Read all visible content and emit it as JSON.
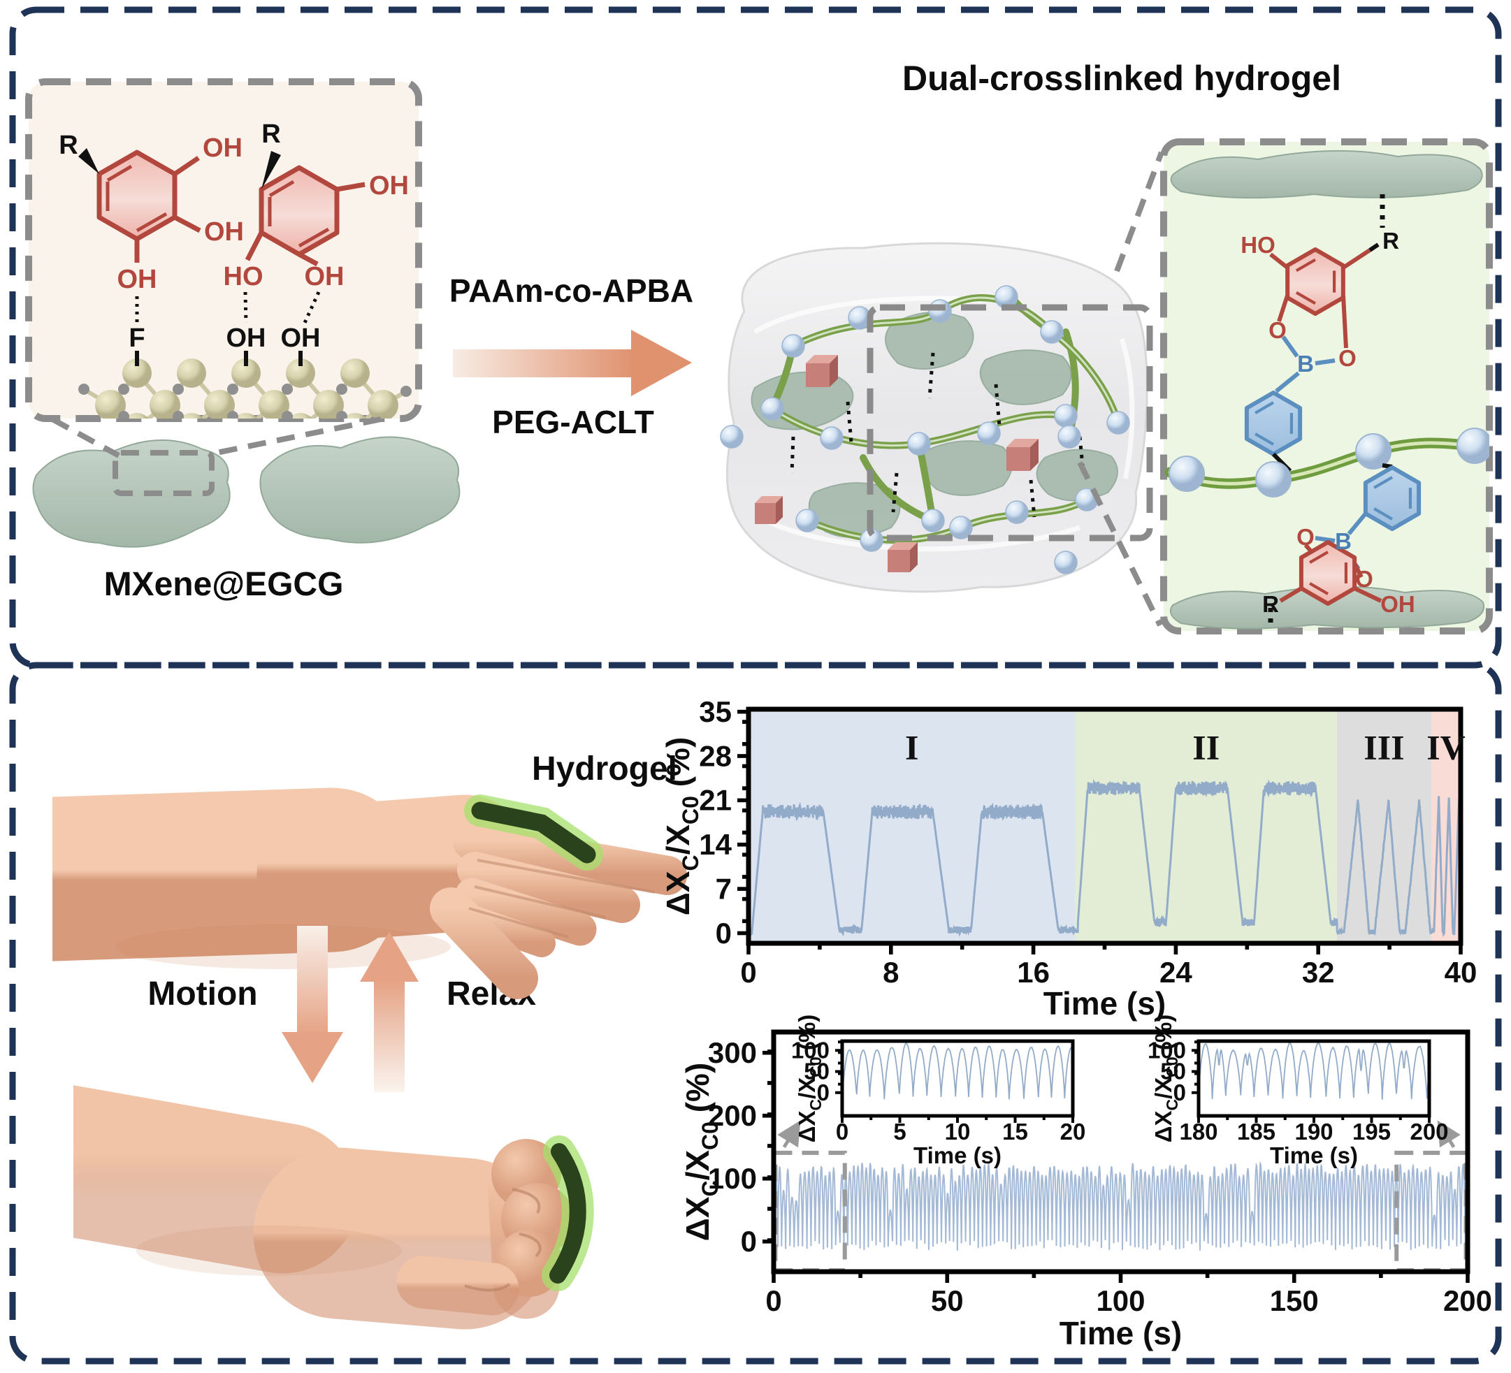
{
  "figure": {
    "panel1": {
      "title": "Dual-crosslinked hydrogel",
      "mxene_label": "MXene@EGCG",
      "reaction": {
        "top_label": "PAAm-co-APBA",
        "bottom_label": "PEG-ACLT"
      },
      "egcg_inset": {
        "ring1": {
          "r": "R",
          "oh_top": "OH",
          "oh_right": "OH",
          "oh_bottom": "OH"
        },
        "ring2": {
          "r": "R",
          "oh_right": "OH",
          "ho_left": "HO",
          "oh_bottom": "OH"
        },
        "surface": {
          "f": "F",
          "oh1": "OH",
          "oh2": "OH"
        }
      },
      "bond_inset": {
        "top_unit": {
          "ho": "HO",
          "r": "R",
          "o_left": "O",
          "b": "B",
          "o_right": "O"
        },
        "bottom_unit": {
          "o_left": "O",
          "b": "B",
          "o_right": "O",
          "r": "R",
          "oh": "OH"
        }
      }
    },
    "panel2": {
      "hydrogel_label": "Hydrogel",
      "motion_label": "Motion",
      "relax_label": "Relax"
    },
    "colors": {
      "border_navy": "#1e3356",
      "dash_gray": "#8c8c8c",
      "line_blue": "#92abc9",
      "band_blue": "#a3b9d6",
      "region_I": "#dce4f0",
      "region_II": "#e3edd6",
      "region_III": "#dcdddc",
      "region_IV": "#f9dcd6",
      "arrow_salmon": "#e5a284",
      "hydrogel_strip_green": "#2b431c",
      "glow_green": "#9ede69",
      "mxene_sheet": "#b5c6ba",
      "ring_red": "#b2473e",
      "ring_blue": "#5b8fc0",
      "chain_green": "#6f9c3e"
    }
  },
  "axis_label_parts": {
    "p1": "ΔX",
    "s1": "C",
    "p2": "/X",
    "s2": "C0",
    "p3": " (%)"
  },
  "chart_data": [
    {
      "type": "line",
      "mount": "chart-pulse",
      "title": "",
      "xlabel": "Time (s)",
      "ylabel": "ΔXC/XC0 (%)",
      "xlim": [
        0,
        40
      ],
      "ylim": [
        -1.6,
        35.4
      ],
      "xticks": [
        0,
        8,
        16,
        24,
        32,
        40
      ],
      "yticks": [
        0,
        7,
        14,
        21,
        28,
        35
      ],
      "minor_x_step": 4,
      "minor_y_step": 3.5,
      "grid": false,
      "legend": "none",
      "line_color": "#92abc9",
      "regions": [
        {
          "label": "I",
          "start": 0,
          "end": 18.35,
          "color": "#dce4f0"
        },
        {
          "label": "II",
          "start": 18.35,
          "end": 33.05,
          "color": "#e3edd6"
        },
        {
          "label": "III",
          "start": 33.05,
          "end": 38.35,
          "color": "#dcdddc"
        },
        {
          "label": "IV",
          "start": 38.35,
          "end": 40,
          "color": "#f9dcd6"
        }
      ],
      "region_label_y": 27.5,
      "segments": [
        {
          "shape": "square",
          "start": 0.2,
          "end": 18.35,
          "period": 6.15,
          "rise": 0.6,
          "high": 3.4,
          "fall": 0.9,
          "amp": 18.7,
          "base": 0.5,
          "top_noise": 0.85,
          "base_noise": 0.55
        },
        {
          "shape": "square",
          "start": 18.5,
          "end": 33.05,
          "period": 4.95,
          "rise": 0.55,
          "high": 2.9,
          "fall": 0.85,
          "amp": 21.2,
          "base": 1.7,
          "top_noise": 0.8,
          "base_noise": 0.6
        },
        {
          "shape": "triangle",
          "start": 33.45,
          "end": 38.35,
          "period": 1.72,
          "rise": 0.78,
          "fall": 0.62,
          "amp": 20.8,
          "base": 0.2
        },
        {
          "shape": "triangle",
          "start": 38.5,
          "end": 40.05,
          "period": 0.57,
          "rise": 0.27,
          "fall": 0.22,
          "amp": 21.6,
          "base": 0.1
        }
      ],
      "sample_step": 0.012,
      "seed": 7
    },
    {
      "type": "line",
      "mount": "chart-cycles",
      "title": "",
      "xlabel": "Time (s)",
      "ylabel": "ΔXC/XC0 (%)",
      "xlim": [
        0,
        200
      ],
      "ylim": [
        -48,
        333
      ],
      "xticks": [
        0,
        50,
        100,
        150,
        200
      ],
      "yticks": [
        0,
        100,
        200,
        300
      ],
      "minor_x_step": 25,
      "minor_y_step": 50,
      "grid": false,
      "legend": "none",
      "line_color": "#a3b9d6",
      "band": {
        "period": 1.18,
        "peak_min": 102,
        "peak_max": 124,
        "low_peak_prob": 0.1,
        "low_peak_min": 40,
        "low_peak_max": 95,
        "dip_min": -14,
        "dip_max": 2,
        "noise": 2.5,
        "mid_dip_prob": 0
      },
      "seed": 11,
      "zoom_boxes": [
        {
          "x0": 0.5,
          "x1": 20.5,
          "y_top": 141,
          "arrow": [
            3,
            150,
            7,
            186
          ]
        },
        {
          "x0": 179.5,
          "x1": 199.5,
          "y_top": 141,
          "arrow": [
            196,
            150,
            192,
            186
          ]
        }
      ],
      "insets": [
        {
          "xlabel": "Time (s)",
          "ylabel": "ΔXC/XC0 (%)",
          "xlim": [
            0,
            20
          ],
          "ylim": [
            -55,
            122
          ],
          "xticks": [
            0,
            5,
            10,
            15,
            20
          ],
          "yticks": [
            0,
            50,
            100
          ],
          "minor_x_step": 2.5,
          "minor_y_step": 25,
          "line_color": "#92abc9",
          "band": {
            "period": 1.22,
            "peak_min": 100,
            "peak_max": 118,
            "low_peak_prob": 0,
            "low_peak_min": 80,
            "low_peak_max": 100,
            "dip_min": -18,
            "dip_max": -2,
            "noise": 1.5,
            "mid_dip_prob": 0
          },
          "seed": 3
        },
        {
          "xlabel": "Time (s)",
          "ylabel": "ΔXC/XC0 (%)",
          "xlim": [
            180,
            200
          ],
          "ylim": [
            -55,
            122
          ],
          "xticks": [
            180,
            185,
            190,
            195,
            200
          ],
          "yticks": [
            0,
            50,
            100
          ],
          "minor_x_step": 2.5,
          "minor_y_step": 25,
          "line_color": "#92abc9",
          "band": {
            "period": 1.25,
            "peak_min": 98,
            "peak_max": 118,
            "low_peak_prob": 0.12,
            "low_peak_min": 55,
            "low_peak_max": 90,
            "dip_min": -18,
            "dip_max": -2,
            "noise": 2.0,
            "mid_dip_prob": 0.3
          },
          "seed": 9
        }
      ]
    }
  ]
}
